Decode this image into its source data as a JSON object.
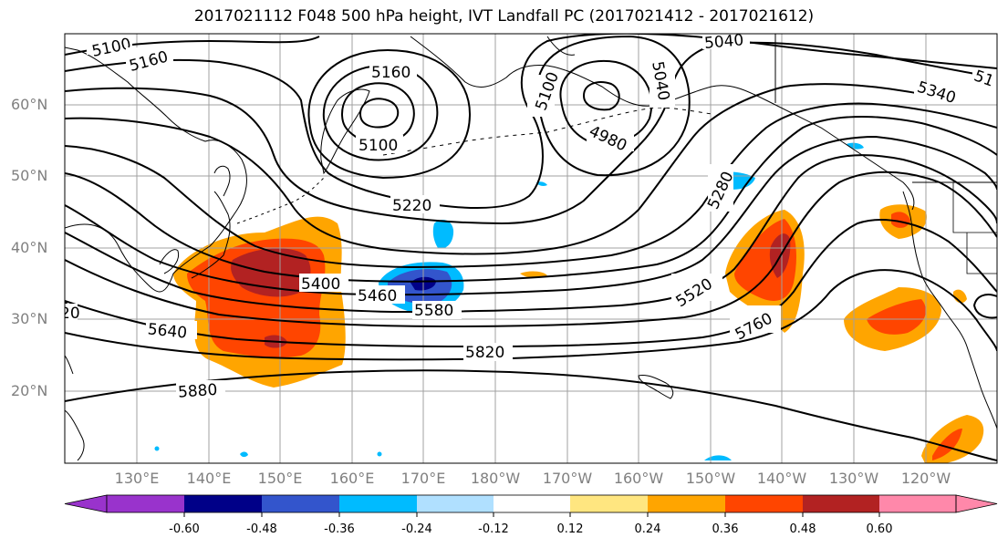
{
  "title": "2017021112 F048 500 hPa height, IVT Landfall PC (2017021412 - 2017021612)",
  "lat_labels": [
    "20°N",
    "30°N",
    "40°N",
    "50°N",
    "60°N"
  ],
  "lon_labels": [
    "130°E",
    "140°E",
    "150°E",
    "160°E",
    "170°E",
    "180°W",
    "170°W",
    "160°W",
    "150°W",
    "140°W",
    "130°W",
    "120°W"
  ],
  "contour_labels": [
    "5100",
    "5160",
    "5160",
    "5100",
    "5040",
    "5100",
    "5040",
    "4980",
    "5340",
    "51",
    "5220",
    "5280",
    "5400",
    "5460",
    "5580",
    "5520",
    "5640",
    "5820",
    "5760",
    "5880",
    "20"
  ],
  "colorbar": {
    "ticks": [
      "-0.60",
      "-0.48",
      "-0.36",
      "-0.24",
      "-0.12",
      "0.12",
      "0.24",
      "0.36",
      "0.48",
      "0.60"
    ],
    "colors": [
      "#9933cc",
      "#000088",
      "#3355cc",
      "#00bbff",
      "#b0e0ff",
      "#ffffff",
      "#ffe680",
      "#ffa500",
      "#ff4500",
      "#b22222",
      "#ff88aa"
    ]
  },
  "colors": {
    "gray_label": "#808080",
    "orange": "#ffa500",
    "red_orange": "#ff4500",
    "dark_red": "#b22222",
    "blue_mid": "#3355cc",
    "blue_light": "#00bbff",
    "navy": "#000088"
  }
}
